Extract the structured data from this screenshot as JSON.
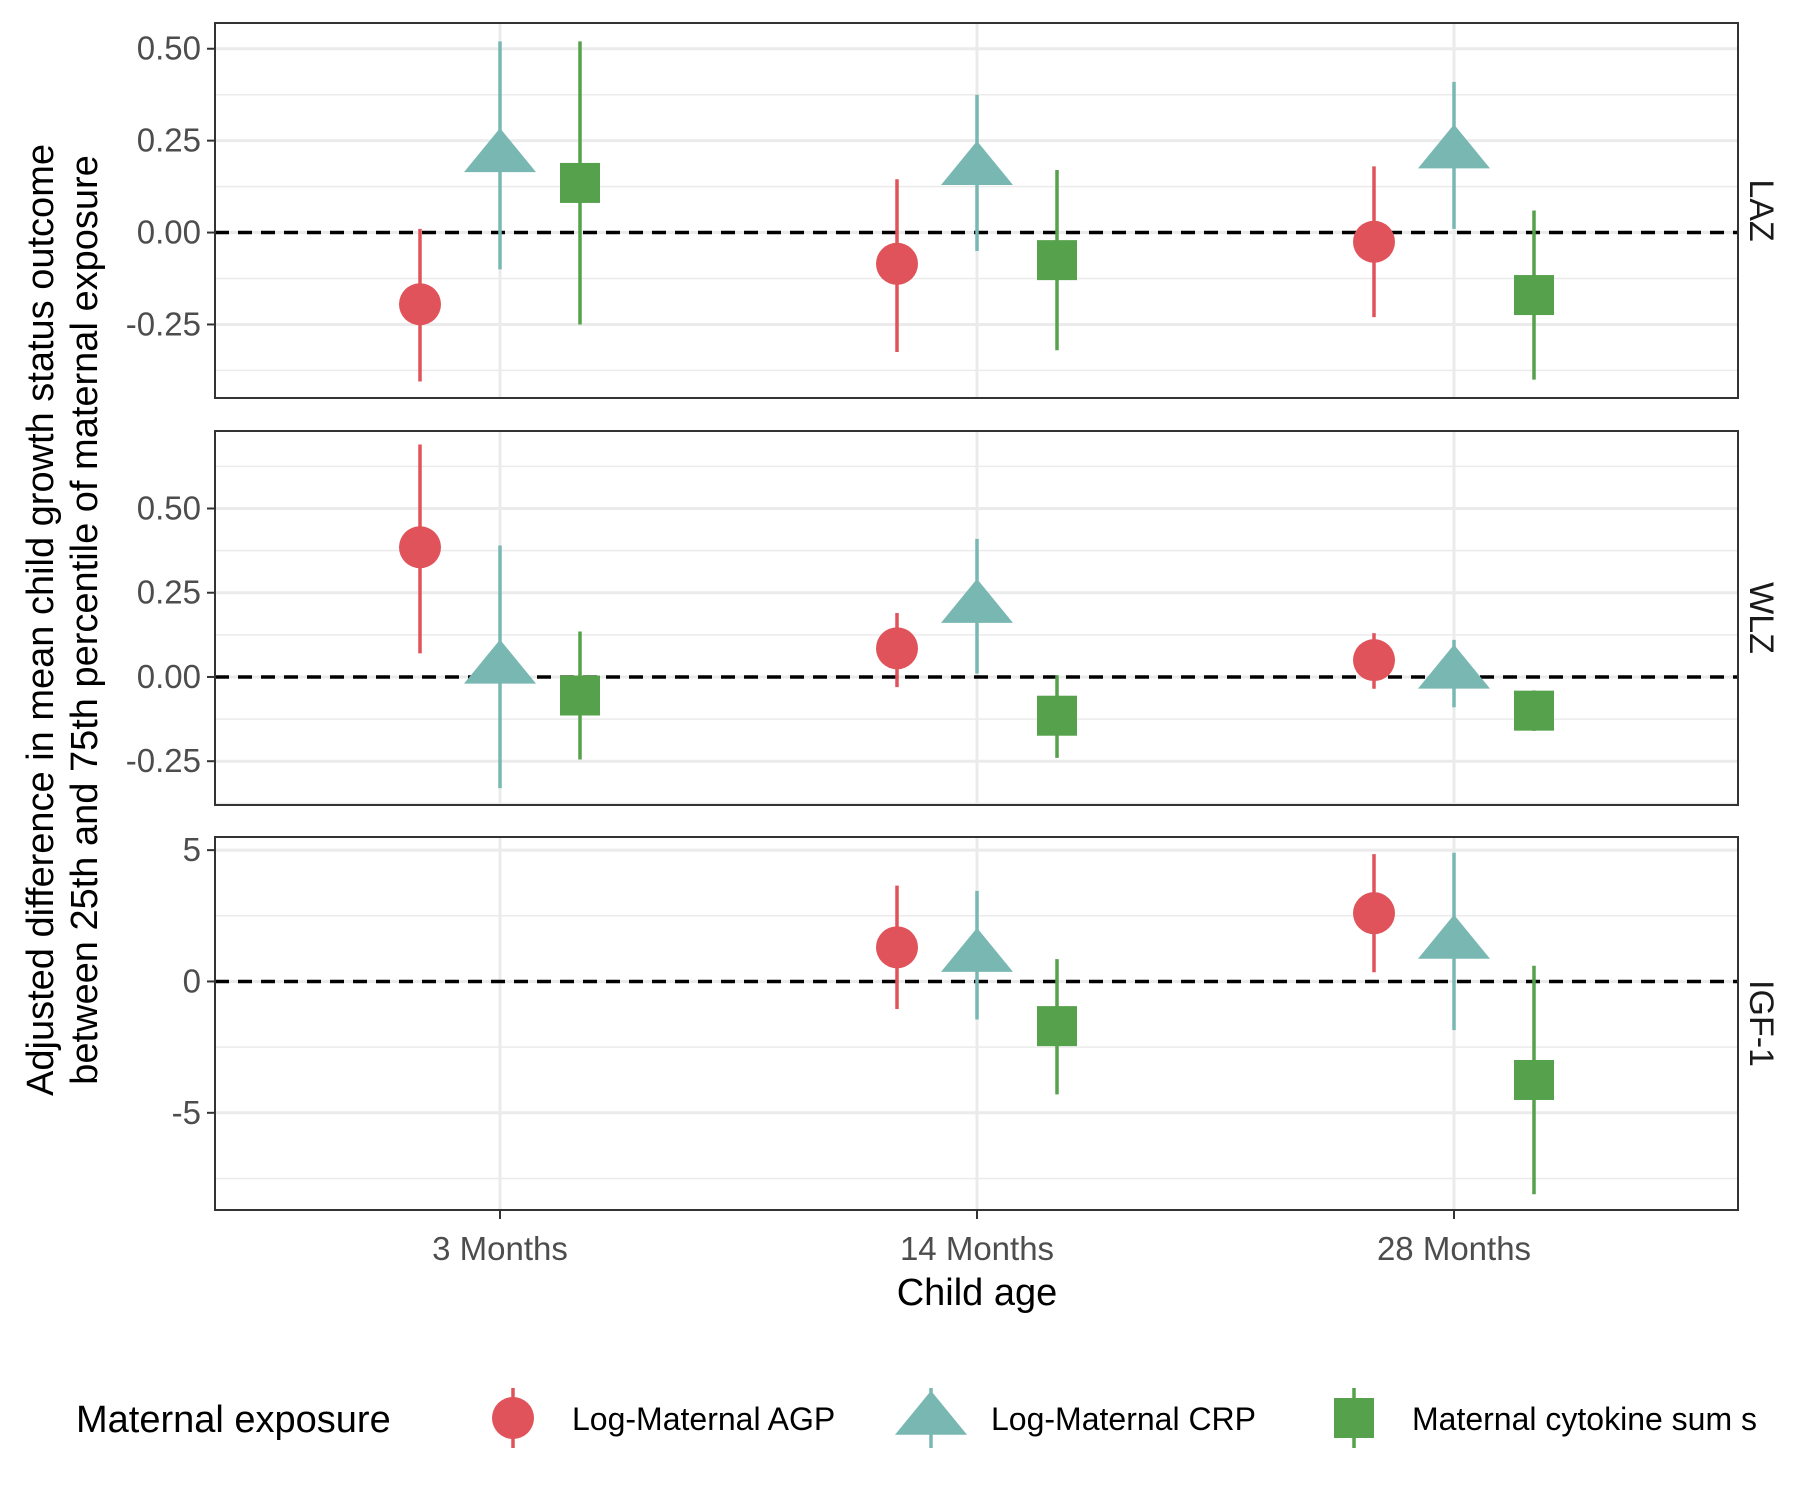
{
  "chart_data": {
    "type": "scatter",
    "variant": "faceted point estimates with confidence intervals",
    "xlabel": "Child age",
    "ylabel_lines": [
      "Adjusted difference in mean child growth status outcome",
      "between 25th and 75th percentile of maternal exposure"
    ],
    "categories": [
      "3 Months",
      "14 Months",
      "28 Months"
    ],
    "legend": {
      "title": "Maternal exposure",
      "position": "bottom",
      "entries": [
        "Log-Maternal AGP",
        "Log-Maternal CRP",
        "Maternal cytokine sum s"
      ]
    },
    "series": [
      {
        "name": "Log-Maternal AGP",
        "color": "#e0535a",
        "shape": "circle",
        "offset": -1
      },
      {
        "name": "Log-Maternal CRP",
        "color": "#79b8b2",
        "shape": "triangle",
        "offset": 0
      },
      {
        "name": "Maternal cytokine sum score",
        "color": "#56a14b",
        "shape": "square",
        "offset": 1
      }
    ],
    "reference_line": 0,
    "grid": true,
    "panels": [
      {
        "label": "LAZ",
        "ylim": [
          -0.45,
          0.57
        ],
        "yticks": [
          -0.25,
          0.0,
          0.25,
          0.5
        ],
        "ytick_labels": [
          "-0.25",
          "0.00",
          "0.25",
          "0.50"
        ],
        "points": [
          [
            {
              "y": -0.195,
              "lo": -0.405,
              "hi": 0.01
            },
            {
              "y": -0.085,
              "lo": -0.325,
              "hi": 0.145
            },
            {
              "y": -0.025,
              "lo": -0.23,
              "hi": 0.18
            }
          ],
          [
            {
              "y": 0.21,
              "lo": -0.1,
              "hi": 0.52
            },
            {
              "y": 0.175,
              "lo": -0.05,
              "hi": 0.375
            },
            {
              "y": 0.22,
              "lo": 0.01,
              "hi": 0.41
            }
          ],
          [
            {
              "y": 0.135,
              "lo": -0.25,
              "hi": 0.52
            },
            {
              "y": -0.075,
              "lo": -0.32,
              "hi": 0.17
            },
            {
              "y": -0.17,
              "lo": -0.4,
              "hi": 0.06
            }
          ]
        ]
      },
      {
        "label": "WLZ",
        "ylim": [
          -0.38,
          0.73
        ],
        "yticks": [
          -0.25,
          0.0,
          0.25,
          0.5
        ],
        "ytick_labels": [
          "-0.25",
          "0.00",
          "0.25",
          "0.50"
        ],
        "points": [
          [
            {
              "y": 0.385,
              "lo": 0.07,
              "hi": 0.69
            },
            {
              "y": 0.085,
              "lo": -0.03,
              "hi": 0.19
            },
            {
              "y": 0.05,
              "lo": -0.035,
              "hi": 0.13
            }
          ],
          [
            {
              "y": 0.03,
              "lo": -0.33,
              "hi": 0.39
            },
            {
              "y": 0.21,
              "lo": 0.01,
              "hi": 0.41
            },
            {
              "y": 0.015,
              "lo": -0.09,
              "hi": 0.11
            }
          ],
          [
            {
              "y": -0.055,
              "lo": -0.245,
              "hi": 0.135
            },
            {
              "y": -0.115,
              "lo": -0.24,
              "hi": 0.005
            },
            {
              "y": -0.1,
              "lo": -0.16,
              "hi": -0.04
            }
          ]
        ]
      },
      {
        "label": "IGF-1",
        "ylim": [
          -8.7,
          5.5
        ],
        "yticks": [
          -5,
          0,
          5
        ],
        "ytick_labels": [
          "-5",
          "0",
          "5"
        ],
        "points": [
          [
            null,
            {
              "y": 1.3,
              "lo": -1.05,
              "hi": 3.65
            },
            {
              "y": 2.6,
              "lo": 0.35,
              "hi": 4.85
            }
          ],
          [
            null,
            {
              "y": 1.0,
              "lo": -1.45,
              "hi": 3.45
            },
            {
              "y": 1.5,
              "lo": -1.85,
              "hi": 4.9
            }
          ],
          [
            null,
            {
              "y": -1.7,
              "lo": -4.3,
              "hi": 0.85
            },
            {
              "y": -3.75,
              "lo": -8.1,
              "hi": 0.6
            }
          ]
        ]
      }
    ]
  }
}
